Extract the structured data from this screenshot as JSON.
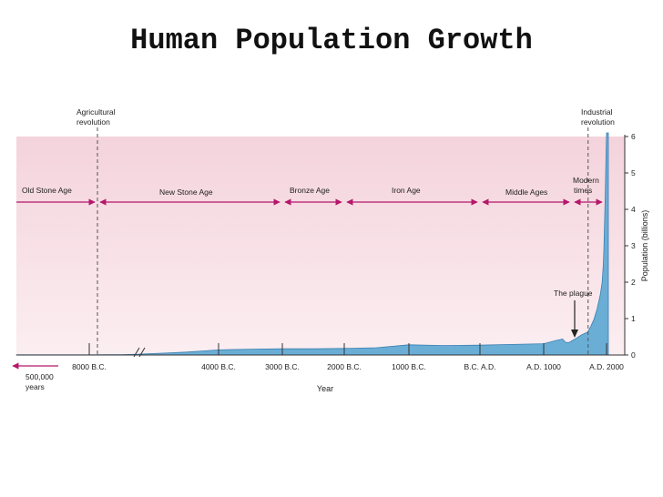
{
  "title": "Human Population Growth",
  "colors": {
    "band_top": "#f4d3dc",
    "band_bottom": "#fbeef1",
    "area_fill": "#6aaed6",
    "area_stroke": "#3a7fb0",
    "arrow": "#b5176b",
    "axis": "#333333"
  },
  "chart_data": {
    "type": "area",
    "xlabel": "Year",
    "ylabel": "Population (billions)",
    "ylim": [
      0,
      6
    ],
    "y_ticks": [
      "0",
      "1",
      "2",
      "3",
      "4",
      "5",
      "6"
    ],
    "x_ticks": [
      {
        "label": "8000 B.C.",
        "year": -8000
      },
      {
        "label": "4000 B.C.",
        "year": -4000
      },
      {
        "label": "3000 B.C.",
        "year": -3000
      },
      {
        "label": "2000 B.C.",
        "year": -2000
      },
      {
        "label": "1000 B.C.",
        "year": -1000
      },
      {
        "label": "B.C. A.D.",
        "year": 0
      },
      {
        "label": "A.D. 1000",
        "year": 1000
      },
      {
        "label": "A.D. 2000",
        "year": 2000
      }
    ],
    "left_marker": {
      "label_line1": "500,000",
      "label_line2": "years"
    },
    "x": [
      -8000,
      -7500,
      -7000,
      -6500,
      -6000,
      -5500,
      -5000,
      -4500,
      -4000,
      -3500,
      -3000,
      -2500,
      -2000,
      -1500,
      -1000,
      -500,
      0,
      500,
      1000,
      1200,
      1300,
      1347,
      1400,
      1500,
      1600,
      1700,
      1750,
      1800,
      1850,
      1900,
      1930,
      1950,
      1960,
      1970,
      1980,
      1990,
      2000
    ],
    "population": [
      0.005,
      0.007,
      0.01,
      0.02,
      0.04,
      0.06,
      0.08,
      0.11,
      0.14,
      0.16,
      0.17,
      0.17,
      0.18,
      0.2,
      0.28,
      0.26,
      0.27,
      0.29,
      0.31,
      0.4,
      0.44,
      0.35,
      0.34,
      0.44,
      0.55,
      0.63,
      0.79,
      0.98,
      1.26,
      1.65,
      2.0,
      2.5,
      3.0,
      3.7,
      4.4,
      5.3,
      6.1
    ],
    "eras": [
      {
        "label": "Old Stone Age",
        "start": "left-edge",
        "end": -8000
      },
      {
        "label": "New Stone Age",
        "start": -8000,
        "end": -3000
      },
      {
        "label": "Bronze Age",
        "start": -3000,
        "end": -2000
      },
      {
        "label": "Iron Age",
        "start": -2000,
        "end": 0
      },
      {
        "label": "Middle Ages",
        "start": 0,
        "end": 1500
      },
      {
        "label_line1": "Modern",
        "label_line2": "times",
        "start": 1500,
        "end": 2000
      }
    ],
    "markers": [
      {
        "label_line1": "Agricultural",
        "label_line2": "revolution",
        "year": -8000
      },
      {
        "label_line1": "Industrial",
        "label_line2": "revolution",
        "year": 1750
      }
    ],
    "annotations": [
      {
        "label": "The plague",
        "year": 1347
      }
    ]
  }
}
